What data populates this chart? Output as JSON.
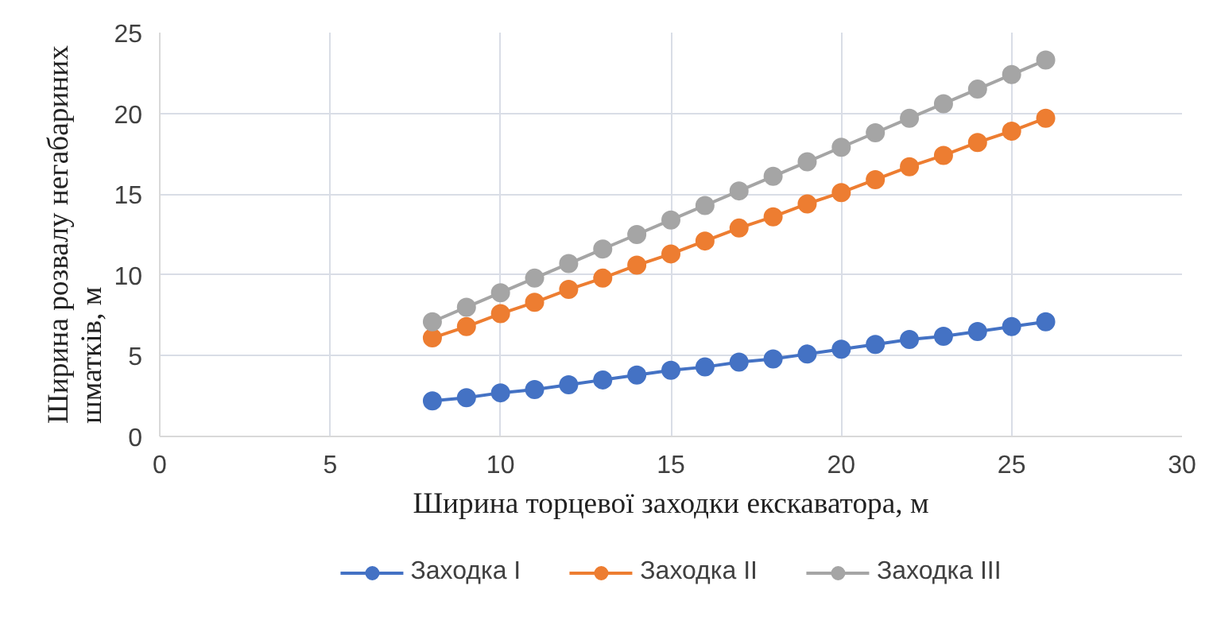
{
  "chart_data": {
    "type": "line",
    "xlabel": "Ширина торцевої заходки екскаватора, м",
    "ylabel": "Ширина розвалу негабариних\nшматків,  м",
    "xlim": [
      0,
      30
    ],
    "xticks": [
      0,
      5,
      10,
      15,
      20,
      25,
      30
    ],
    "ylim": [
      0,
      25
    ],
    "yticks": [
      0,
      5,
      10,
      15,
      20,
      25
    ],
    "grid": true,
    "legend": "bottom",
    "marker": "circle",
    "line_style": "solid",
    "x": [
      8,
      9,
      10,
      11,
      12,
      13,
      14,
      15,
      16,
      17,
      18,
      19,
      20,
      21,
      22,
      23,
      24,
      25,
      26
    ],
    "series": [
      {
        "name": "Заходка I",
        "color": "#4472c4",
        "values": [
          2.2,
          2.4,
          2.7,
          2.9,
          3.2,
          3.5,
          3.8,
          4.1,
          4.3,
          4.6,
          4.8,
          5.1,
          5.4,
          5.7,
          6.0,
          6.2,
          6.5,
          6.8,
          7.1
        ]
      },
      {
        "name": "Заходка II",
        "color": "#ed7d31",
        "values": [
          6.1,
          6.8,
          7.6,
          8.3,
          9.1,
          9.8,
          10.6,
          11.3,
          12.1,
          12.9,
          13.6,
          14.4,
          15.1,
          15.9,
          16.7,
          17.4,
          18.2,
          18.9,
          19.7
        ]
      },
      {
        "name": "Заходка III",
        "color": "#a5a5a5",
        "values": [
          7.1,
          8.0,
          8.9,
          9.8,
          10.7,
          11.6,
          12.5,
          13.4,
          14.3,
          15.2,
          16.1,
          17.0,
          17.9,
          18.8,
          19.7,
          20.6,
          21.5,
          22.4,
          23.3
        ]
      }
    ]
  }
}
